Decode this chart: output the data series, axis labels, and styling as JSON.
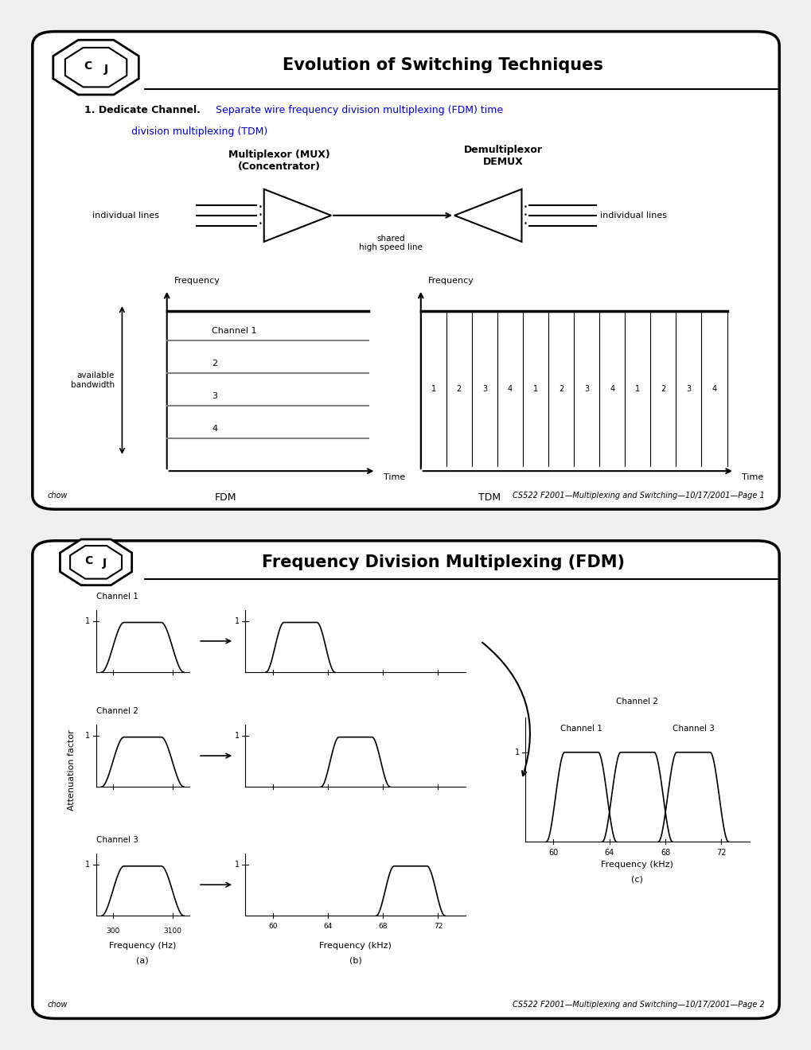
{
  "slide1_title": "Evolution of Switching Techniques",
  "slide1_subtitle_bold": "1. Dedicate Channel",
  "slide1_subtitle_blue": "Separate wire frequency division multiplexing (FDM) time",
  "slide1_subtitle_blue2": "   division multiplexing (TDM)",
  "slide2_title": "Frequency Division Multiplexing (FDM)",
  "footer_left": "chow",
  "footer_right1": "CS522 F2001—Multiplexing and Switching—10/17/2001—Page 1",
  "footer_right2": "CS522 F2001—Multiplexing and Switching—10/17/2001—Page 2",
  "bg_color": "#f0f0f0",
  "blue_color": "#0000cc"
}
